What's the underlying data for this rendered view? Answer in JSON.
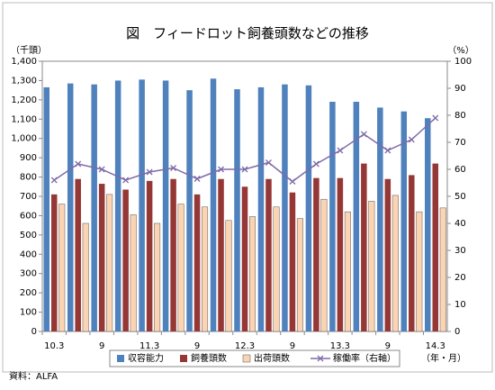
{
  "chart_data": {
    "type": "bar",
    "title": "図　フィードロット飼養頭数などの推移",
    "y_label": "（千頭）",
    "y2_label": "（%）",
    "x_label": "（年・月）",
    "source": "資料：ALFA",
    "categories": [
      "10.3",
      null,
      "9",
      null,
      "11.3",
      null,
      "9",
      null,
      "12.3",
      null,
      "9",
      null,
      "13.3",
      null,
      "9",
      null,
      "14.3"
    ],
    "series": [
      {
        "name": "収容能力",
        "color": "#4f81bd",
        "values": [
          1265,
          1285,
          1280,
          1300,
          1305,
          1300,
          1250,
          1310,
          1255,
          1265,
          1280,
          1275,
          1190,
          1190,
          1160,
          1140,
          1105
        ]
      },
      {
        "name": "飼養頭数",
        "color": "#953735",
        "values": [
          710,
          790,
          765,
          735,
          780,
          790,
          710,
          790,
          750,
          790,
          720,
          795,
          795,
          870,
          790,
          810,
          870
        ]
      },
      {
        "name": "出荷頭数",
        "color": "#fbd4b4",
        "values": [
          660,
          560,
          710,
          605,
          560,
          660,
          645,
          575,
          595,
          645,
          585,
          685,
          620,
          675,
          705,
          620,
          640
        ]
      },
      {
        "name": "稼働率（右軸）",
        "color": "#7f6aa8",
        "type": "line",
        "axis": "y2",
        "values": [
          56,
          62,
          60,
          56,
          59,
          60.5,
          56.5,
          60,
          60,
          62.5,
          55.5,
          62,
          67,
          73,
          67,
          71,
          79
        ]
      }
    ],
    "ylim": [
      0,
      1400
    ],
    "yticks": [
      0,
      100,
      200,
      300,
      400,
      500,
      600,
      700,
      800,
      900,
      {
        "value": 1000,
        "label": "1,000"
      },
      {
        "value": 1100,
        "label": "1,100"
      },
      {
        "value": 1200,
        "label": "1,200"
      },
      {
        "value": 1300,
        "label": "1,300"
      },
      {
        "value": 1400,
        "label": "1,400"
      }
    ],
    "y2lim": [
      0,
      100
    ],
    "y2ticks": [
      0,
      10,
      20,
      30,
      40,
      50,
      60,
      70,
      80,
      90,
      100
    ]
  }
}
